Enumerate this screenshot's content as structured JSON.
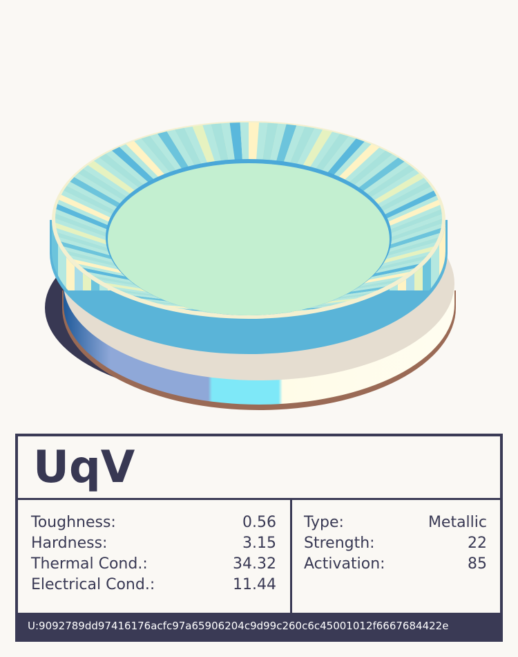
{
  "card": {
    "title": "UqV",
    "properties": [
      {
        "label": "Toughness:",
        "value": "0.56"
      },
      {
        "label": "Hardness:",
        "value": "3.15"
      },
      {
        "label": "Thermal Cond.:",
        "value": "34.32"
      },
      {
        "label": "Electrical Cond.:",
        "value": "11.44"
      }
    ],
    "attributes": [
      {
        "label": "Type:",
        "value": "Metallic"
      },
      {
        "label": "Strength:",
        "value": "22"
      },
      {
        "label": "Activation:",
        "value": "85"
      }
    ],
    "hash": "U:9092789dd97416176acfc97a65906204c9d99c260c6c45001012f6667684422e"
  }
}
